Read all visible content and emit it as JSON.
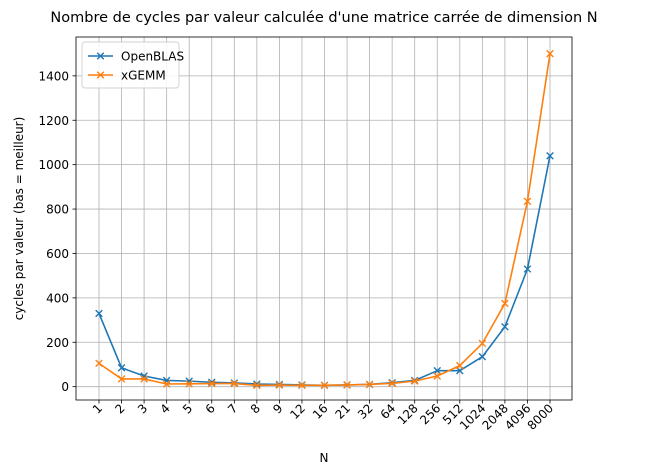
{
  "chart_data": {
    "type": "line",
    "title": "Nombre de cycles par valeur calculée d'une matrice carrée de dimension N",
    "xlabel": "N",
    "ylabel": "cycles par valeur (bas = meilleur)",
    "categories": [
      "1",
      "2",
      "3",
      "4",
      "5",
      "6",
      "7",
      "8",
      "9",
      "12",
      "16",
      "21",
      "32",
      "64",
      "128",
      "256",
      "512",
      "1024",
      "2048",
      "4096",
      "8000"
    ],
    "yticks": [
      0,
      200,
      400,
      600,
      800,
      1000,
      1200,
      1400
    ],
    "ylim": [
      -60,
      1575
    ],
    "grid": true,
    "legend_position": "top-left",
    "series": [
      {
        "name": "OpenBLAS",
        "color": "#1f77b4",
        "marker": "x",
        "values": [
          330,
          85,
          48,
          28,
          25,
          20,
          17,
          12,
          10,
          8,
          6,
          8,
          10,
          18,
          28,
          72,
          72,
          135,
          270,
          530,
          1040
        ]
      },
      {
        "name": "xGEMM",
        "color": "#ff7f0e",
        "marker": "x",
        "values": [
          105,
          35,
          35,
          12,
          13,
          14,
          14,
          6,
          7,
          6,
          6,
          8,
          10,
          15,
          25,
          48,
          95,
          195,
          375,
          835,
          1500
        ]
      }
    ]
  }
}
